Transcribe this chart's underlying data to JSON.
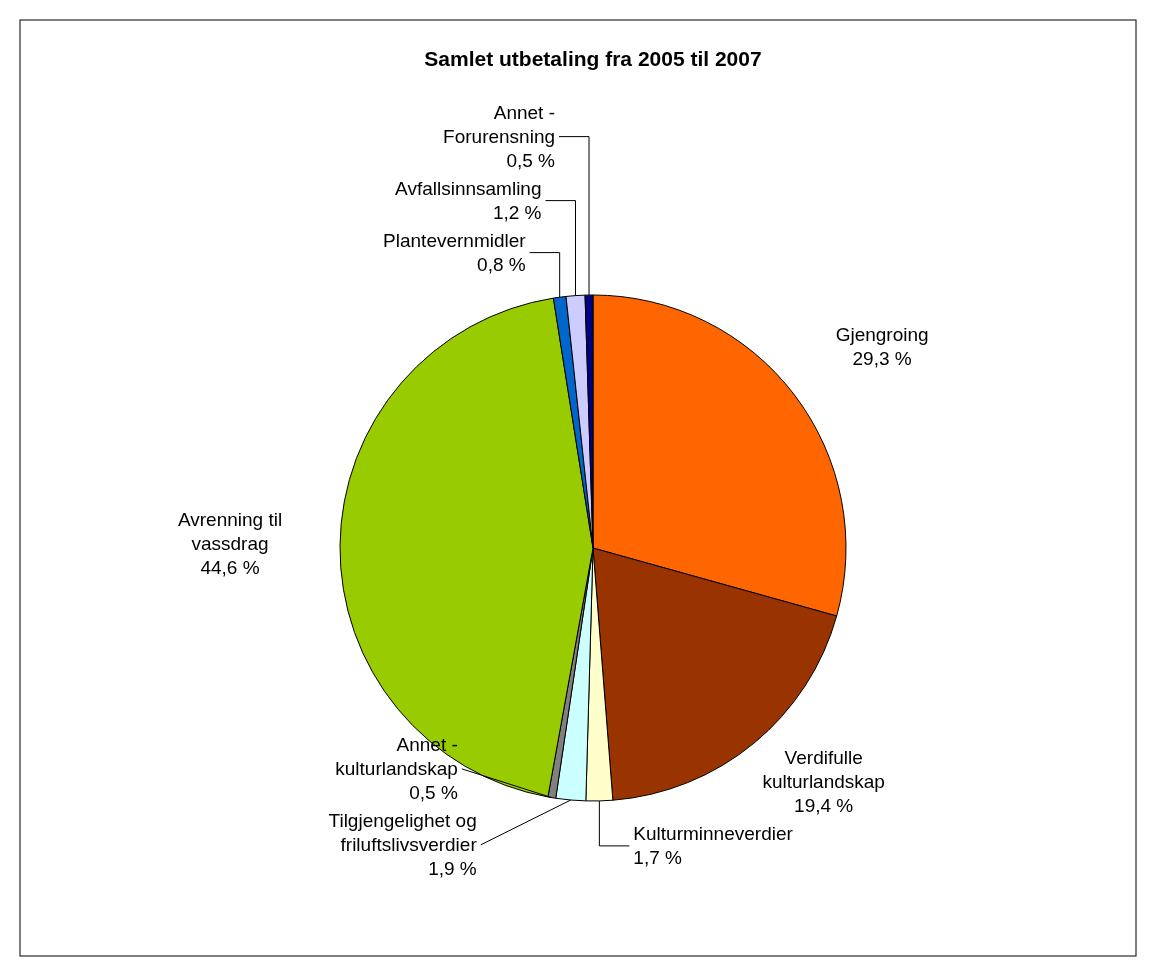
{
  "chart_data": {
    "type": "pie",
    "title": "Samlet utbetaling fra 2005 til 2007",
    "categories": [
      "Gjengroing",
      "Verdifulle kulturlandskap",
      "Kulturminneverdier",
      "Tilgjengelighet og friluftslivsverdier",
      "Annet - kulturlandskap",
      "Avrenning til vassdrag",
      "Plantevernmidler",
      "Avfallsinnsamling",
      "Annet - Forurensning"
    ],
    "values": [
      29.3,
      19.4,
      1.7,
      1.9,
      0.5,
      44.6,
      0.8,
      1.2,
      0.5
    ],
    "value_labels": [
      "29,3 %",
      "19,4 %",
      "1,7 %",
      "1,9 %",
      "0,5 %",
      "44,6 %",
      "0,8 %",
      "1,2 %",
      "0,5 %"
    ],
    "colors": [
      "#ff6600",
      "#993300",
      "#ffffcc",
      "#ccffff",
      "#808080",
      "#99cc00",
      "#0066cc",
      "#ccccff",
      "#000080"
    ]
  }
}
